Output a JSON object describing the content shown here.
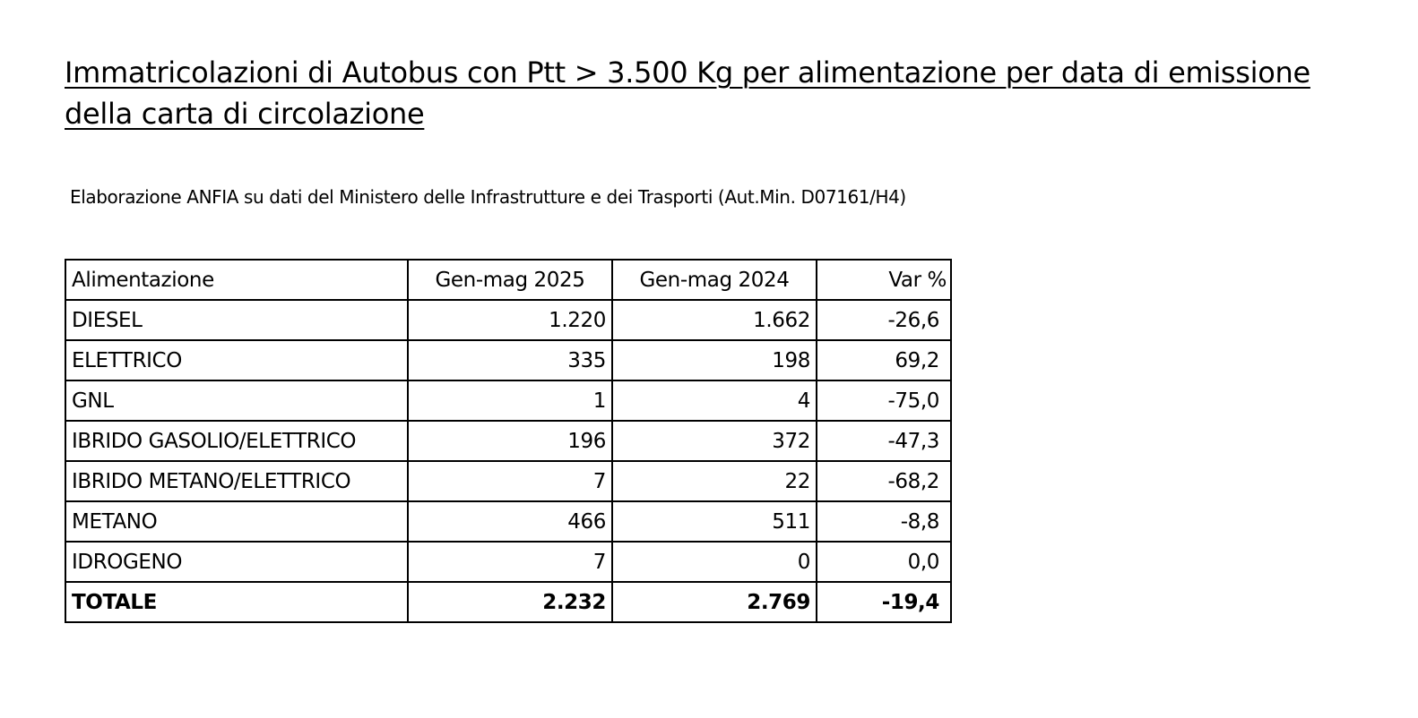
{
  "title": "Immatricolazioni di Autobus con Ptt > 3.500 Kg per alimentazione per data di emissione della carta di circolazione",
  "source": "Elaborazione ANFIA su dati del Ministero delle Infrastrutture e dei Trasporti (Aut.Min. D07161/H4)",
  "table": {
    "headers": [
      "Alimentazione",
      "Gen-mag 2025",
      "Gen-mag 2024",
      "Var %"
    ],
    "rows": [
      [
        "DIESEL",
        "1.220",
        "1.662",
        "-26,6"
      ],
      [
        "ELETTRICO",
        "335",
        "198",
        "69,2"
      ],
      [
        "GNL",
        "1",
        "4",
        "-75,0"
      ],
      [
        "IBRIDO GASOLIO/ELETTRICO",
        "196",
        "372",
        "-47,3"
      ],
      [
        "IBRIDO METANO/ELETTRICO",
        "7",
        "22",
        "-68,2"
      ],
      [
        "METANO",
        "466",
        "511",
        "-8,8"
      ],
      [
        "IDROGENO",
        "7",
        "0",
        "0,0"
      ]
    ],
    "total": [
      "TOTALE",
      "2.232",
      "2.769",
      "-19,4"
    ]
  }
}
